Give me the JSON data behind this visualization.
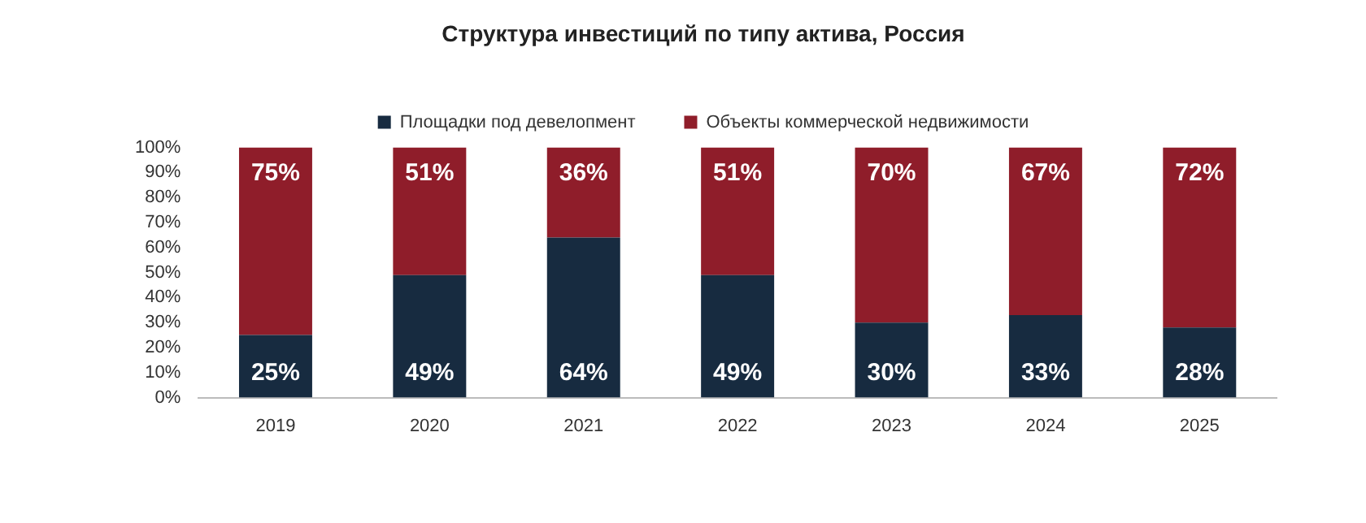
{
  "chart_data": {
    "type": "bar",
    "title": "Структура инвестиций по типу актива, Россия",
    "categories": [
      "2019",
      "2020",
      "2021",
      "2022",
      "2023",
      "2024",
      "2025"
    ],
    "series": [
      {
        "name": "Площадки под девелопмент",
        "color": "#172b40",
        "values": [
          25,
          49,
          64,
          49,
          30,
          33,
          28
        ],
        "value_labels": [
          "25%",
          "49%",
          "64%",
          "49%",
          "30%",
          "33%",
          "28%"
        ]
      },
      {
        "name": "Объекты коммерческой недвижимости",
        "color": "#8f1d2a",
        "values": [
          75,
          51,
          36,
          51,
          70,
          67,
          72
        ],
        "value_labels": [
          "75%",
          "51%",
          "36%",
          "51%",
          "70%",
          "67%",
          "72%"
        ]
      }
    ],
    "stacked": true,
    "ylim": [
      0,
      100
    ],
    "yticks": [
      {
        "value": 0,
        "label": "0%"
      },
      {
        "value": 10,
        "label": "10%"
      },
      {
        "value": 20,
        "label": "20%"
      },
      {
        "value": 30,
        "label": "30%"
      },
      {
        "value": 40,
        "label": "40%"
      },
      {
        "value": 50,
        "label": "50%"
      },
      {
        "value": 60,
        "label": "60%"
      },
      {
        "value": 70,
        "label": "70%"
      },
      {
        "value": 80,
        "label": "80%"
      },
      {
        "value": 90,
        "label": "90%"
      },
      {
        "value": 100,
        "label": "100%"
      }
    ],
    "grid": false,
    "legend": "top"
  }
}
